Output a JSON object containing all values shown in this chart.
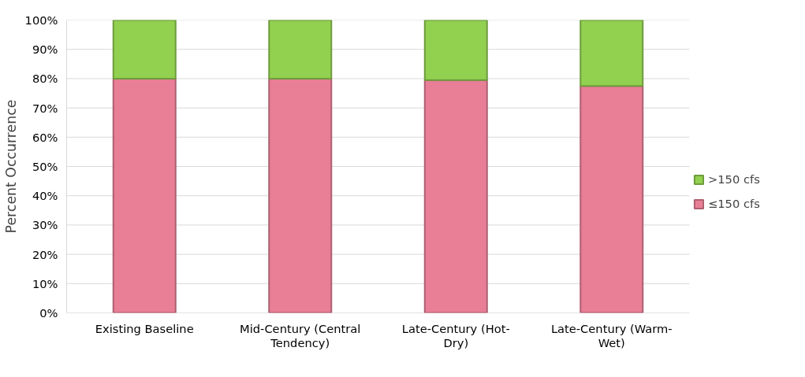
{
  "chart_data": {
    "type": "bar",
    "stacked": true,
    "ylabel": "Percent Occurrence",
    "categories": [
      "Existing Baseline",
      "Mid-Century (Central Tendency)",
      "Late-Century (Hot-Dry)",
      "Late-Century (Warm-Wet)"
    ],
    "series": [
      {
        "name": "≤150 cfs",
        "color": "#e87f96",
        "values": [
          80,
          80,
          79.5,
          77.5
        ]
      },
      {
        "name": ">150 cfs",
        "color": "#92d050",
        "values": [
          20,
          20,
          20.5,
          22.5
        ]
      }
    ],
    "ylim": [
      0,
      100
    ],
    "yticks": [
      {
        "value": 0,
        "label": "0%"
      },
      {
        "value": 10,
        "label": "10%"
      },
      {
        "value": 20,
        "label": "20%"
      },
      {
        "value": 30,
        "label": "30%"
      },
      {
        "value": 40,
        "label": "40%"
      },
      {
        "value": 50,
        "label": "50%"
      },
      {
        "value": 60,
        "label": "60%"
      },
      {
        "value": 70,
        "label": "70%"
      },
      {
        "value": 80,
        "label": "80%"
      },
      {
        "value": 90,
        "label": "90%"
      },
      {
        "value": 100,
        "label": "100%"
      }
    ],
    "grid": "y",
    "legend": "right"
  }
}
